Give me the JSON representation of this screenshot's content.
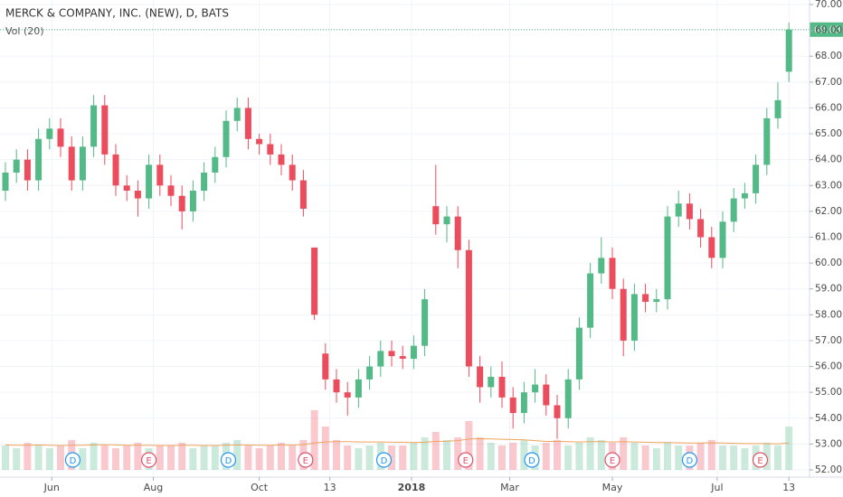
{
  "chart_data": {
    "type": "candlestick",
    "title": "MERCK & COMPANY, INC. (NEW), D, BATS",
    "subtitle": "Vol (20)",
    "up_color": "#53b987",
    "down_color": "#eb4d5c",
    "ma_color": "#f0a35a",
    "grid": true,
    "open": [
      62.8,
      63.5,
      64,
      63.2,
      64.8,
      65.2,
      64.5,
      63.2,
      64.5,
      66.1,
      64.2,
      63,
      62.8,
      62.5,
      63.8,
      63,
      62.6,
      62,
      62.8,
      63.5,
      64.1,
      65.5,
      66,
      64.8,
      64.6,
      64.2,
      63.8,
      63.2,
      60.6,
      56.5,
      55.5,
      55,
      54.8,
      55.5,
      56,
      56.6,
      56.4,
      56.3,
      56.8,
      62.2,
      61.5,
      61.8,
      60.5,
      56,
      55.2,
      55.6,
      54.8,
      54.2,
      55,
      55.3,
      54.5,
      54,
      55.5,
      57.5,
      59.6,
      60.2,
      59,
      57,
      58.8,
      58.5,
      58.6,
      61.8,
      62.3,
      61.7,
      61,
      60.2,
      61.6,
      62.5,
      62.7,
      63.8,
      65.6,
      67.4
    ],
    "high": [
      63.9,
      64.4,
      64.4,
      65.2,
      65.6,
      65.6,
      64.9,
      64.9,
      66.5,
      66.5,
      64.6,
      63.4,
      63.2,
      64.2,
      64.2,
      63.4,
      63,
      63.2,
      63.9,
      64.5,
      65.9,
      66.4,
      66.4,
      65,
      65,
      64.6,
      64.2,
      63.6,
      60.6,
      56.9,
      55.9,
      55.4,
      55.9,
      56.4,
      57,
      57,
      56.8,
      57.2,
      59,
      63.8,
      62.2,
      62.2,
      60.9,
      56.4,
      56,
      56.2,
      55.2,
      55.4,
      55.9,
      55.7,
      54.9,
      55.9,
      57.9,
      60,
      61,
      60.6,
      59.4,
      59.2,
      59.2,
      59,
      62.2,
      62.8,
      62.7,
      62.1,
      61.4,
      62,
      62.9,
      63.1,
      64.2,
      66,
      67,
      69.3
    ],
    "low": [
      62.4,
      63.1,
      62.8,
      62.8,
      64.4,
      64.1,
      62.8,
      62.8,
      64.1,
      63.8,
      62.6,
      62.4,
      61.8,
      62.1,
      62.6,
      62.2,
      61.3,
      61.6,
      62.4,
      63.1,
      63.7,
      65.1,
      64.4,
      64.2,
      63.8,
      63.4,
      62.8,
      61.8,
      57.8,
      55.1,
      54.6,
      54.1,
      54.4,
      55.1,
      55.6,
      56,
      55.9,
      55.9,
      56.4,
      61.1,
      60.8,
      59.8,
      55.6,
      54.6,
      54.8,
      54.4,
      53.6,
      53.8,
      54.6,
      54.1,
      53.2,
      53.6,
      55.1,
      57.1,
      59.2,
      58.6,
      56.4,
      56.6,
      58.1,
      58.1,
      58.2,
      61.4,
      61.3,
      60.6,
      59.8,
      59.8,
      61.2,
      62.1,
      62.3,
      63.4,
      65.2,
      67
    ],
    "close": [
      63.5,
      64,
      63.2,
      64.8,
      65.2,
      64.5,
      63.2,
      64.5,
      66.1,
      64.2,
      63,
      62.8,
      62.5,
      63.8,
      63,
      62.6,
      62,
      62.8,
      63.5,
      64.1,
      65.5,
      66,
      64.8,
      64.6,
      64.2,
      63.8,
      63.2,
      62.1,
      58,
      55.5,
      55,
      54.8,
      55.5,
      56,
      56.6,
      56.4,
      56.3,
      56.8,
      58.6,
      61.5,
      61.8,
      60.5,
      56,
      55.2,
      55.6,
      54.8,
      54.2,
      55,
      55.3,
      54.5,
      54,
      55.5,
      57.5,
      59.6,
      60.2,
      59,
      57,
      58.8,
      58.5,
      58.6,
      61.8,
      62.3,
      61.7,
      61,
      60.2,
      61.6,
      62.5,
      62.7,
      63.8,
      65.6,
      66.3,
      69.03
    ],
    "volume": [
      9,
      8,
      10,
      9,
      8,
      9,
      11,
      8,
      10,
      9,
      8,
      9,
      10,
      8,
      9,
      9,
      10,
      8,
      9,
      9,
      10,
      11,
      9,
      8,
      9,
      10,
      9,
      11,
      22,
      16,
      11,
      9,
      8,
      9,
      10,
      9,
      9,
      10,
      12,
      14,
      11,
      12,
      18,
      12,
      10,
      9,
      10,
      11,
      9,
      10,
      11,
      9,
      10,
      12,
      11,
      10,
      12,
      10,
      9,
      8,
      10,
      9,
      9,
      10,
      11,
      9,
      9,
      8,
      9,
      10,
      9,
      16
    ],
    "volume_ma": [
      9.2,
      9.1,
      9.1,
      9.2,
      9.1,
      9,
      9.1,
      9.1,
      9.2,
      9.3,
      9.2,
      9.1,
      9.1,
      9.1,
      9,
      9,
      9.1,
      9.1,
      9,
      9,
      9.1,
      9.2,
      9.2,
      9.1,
      9.1,
      9.2,
      9.2,
      9.3,
      9.9,
      10.3,
      10.4,
      10.4,
      10.3,
      10.3,
      10.3,
      10.2,
      10.2,
      10.1,
      10.2,
      10.5,
      10.6,
      10.8,
      11.4,
      11.5,
      11.4,
      11.3,
      11.2,
      11.1,
      10.8,
      10.5,
      10.5,
      10.4,
      10.3,
      10.4,
      10.4,
      10.3,
      10.4,
      10.3,
      10.2,
      10.1,
      10.1,
      10,
      9.9,
      9.9,
      10,
      9.9,
      9.8,
      9.7,
      9.7,
      9.7,
      9.6,
      9.9
    ],
    "ylim": [
      52,
      70
    ],
    "vlim": [
      0,
      40
    ],
    "yticks": [
      {
        "value": 52,
        "label": "52.00"
      },
      {
        "value": 53,
        "label": "53.00"
      },
      {
        "value": 54,
        "label": "54.00"
      },
      {
        "value": 55,
        "label": "55.00"
      },
      {
        "value": 56,
        "label": "56.00"
      },
      {
        "value": 57,
        "label": "57.00"
      },
      {
        "value": 58,
        "label": "58.00"
      },
      {
        "value": 59,
        "label": "59.00"
      },
      {
        "value": 60,
        "label": "60.00"
      },
      {
        "value": 61,
        "label": "61.00"
      },
      {
        "value": 62,
        "label": "62.00"
      },
      {
        "value": 63,
        "label": "63.00"
      },
      {
        "value": 64,
        "label": "64.00"
      },
      {
        "value": 65,
        "label": "65.00"
      },
      {
        "value": 66,
        "label": "66.00"
      },
      {
        "value": 67,
        "label": "67.00"
      },
      {
        "value": 68,
        "label": "68.00"
      },
      {
        "value": 69,
        "label": "69.00"
      },
      {
        "value": 70,
        "label": "70.00"
      }
    ],
    "xticks": [
      {
        "value": 4.2,
        "label": "Jun"
      },
      {
        "value": 13.4,
        "label": "Aug"
      },
      {
        "value": 23,
        "label": "Oct"
      },
      {
        "value": 29.4,
        "label": "13"
      },
      {
        "value": 36.8,
        "label": "2018"
      },
      {
        "value": 45.7,
        "label": "Mar"
      },
      {
        "value": 55,
        "label": "May"
      },
      {
        "value": 64.5,
        "label": "Jul"
      },
      {
        "value": 71,
        "label": "13"
      }
    ],
    "last_price": 69.03,
    "events": [
      {
        "label": "D",
        "x": 6.1,
        "color": "#2196f3"
      },
      {
        "label": "E",
        "x": 13,
        "color": "#e0506a"
      },
      {
        "label": "D",
        "x": 20.2,
        "color": "#2196f3"
      },
      {
        "label": "E",
        "x": 27.2,
        "color": "#e0506a"
      },
      {
        "label": "D",
        "x": 34.3,
        "color": "#2196f3"
      },
      {
        "label": "E",
        "x": 41.7,
        "color": "#e0506a"
      },
      {
        "label": "D",
        "x": 47.7,
        "color": "#2196f3"
      },
      {
        "label": "E",
        "x": 55,
        "color": "#e0506a"
      },
      {
        "label": "D",
        "x": 62,
        "color": "#2196f3"
      },
      {
        "label": "E",
        "x": 68.4,
        "color": "#e0506a"
      }
    ]
  }
}
